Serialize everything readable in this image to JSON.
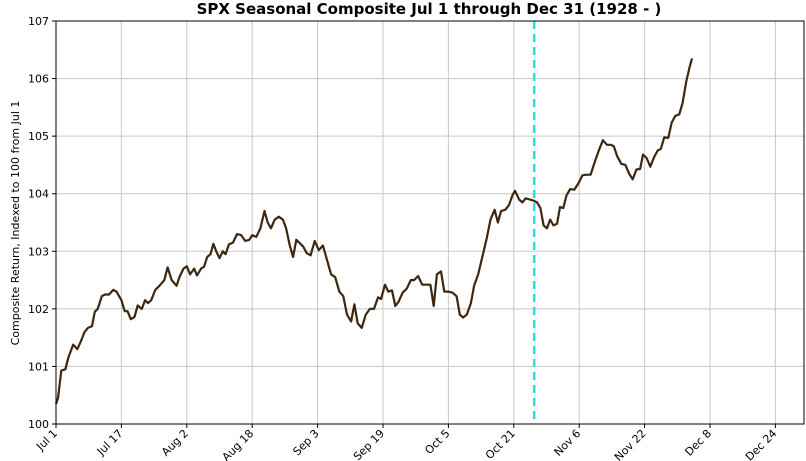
{
  "chart_data": {
    "type": "line",
    "title": "SPX Seasonal Composite Jul 1 through Dec 31 (1928 - )",
    "xlabel": "",
    "ylabel": "Composite Return, Indexed to 100 from Jul 1",
    "ylim": [
      100,
      107
    ],
    "yticks": [
      100,
      101,
      102,
      103,
      104,
      105,
      106,
      107
    ],
    "grid": true,
    "xtick_labels": [
      "Jul 1",
      "Jul 17",
      "Aug 2",
      "Aug 18",
      "Sep 3",
      "Sep 19",
      "Oct 5",
      "Oct 21",
      "Nov 6",
      "Nov 22",
      "Dec 8",
      "Dec 24"
    ],
    "xtick_days": [
      0,
      16,
      32,
      48,
      64,
      80,
      96,
      112,
      128,
      144,
      160,
      176
    ],
    "xlim_days": [
      0,
      183
    ],
    "vline_day": 117,
    "vline_color": "#22e0f0",
    "line_color": "#3d2710",
    "series": [
      {
        "points": [
          [
            0,
            100.35
          ],
          [
            0.5,
            100.45
          ],
          [
            1.3,
            100.93
          ],
          [
            2.3,
            100.95
          ],
          [
            3,
            101.15
          ],
          [
            4.2,
            101.38
          ],
          [
            5.2,
            101.3
          ],
          [
            6,
            101.42
          ],
          [
            7,
            101.6
          ],
          [
            7.8,
            101.67
          ],
          [
            8.8,
            101.7
          ],
          [
            9.5,
            101.95
          ],
          [
            10.2,
            102.0
          ],
          [
            11.2,
            102.22
          ],
          [
            12,
            102.25
          ],
          [
            13,
            102.25
          ],
          [
            14,
            102.33
          ],
          [
            14.8,
            102.3
          ],
          [
            16,
            102.15
          ],
          [
            16.8,
            101.96
          ],
          [
            17.5,
            101.96
          ],
          [
            18.3,
            101.82
          ],
          [
            19.2,
            101.86
          ],
          [
            20,
            102.06
          ],
          [
            21,
            102.0
          ],
          [
            21.8,
            102.15
          ],
          [
            22.5,
            102.1
          ],
          [
            23.3,
            102.15
          ],
          [
            24.3,
            102.33
          ],
          [
            25.3,
            102.4
          ],
          [
            26.5,
            102.5
          ],
          [
            27.3,
            102.72
          ],
          [
            28.3,
            102.5
          ],
          [
            29.5,
            102.4
          ],
          [
            30.2,
            102.55
          ],
          [
            31.2,
            102.7
          ],
          [
            32,
            102.74
          ],
          [
            32.8,
            102.6
          ],
          [
            33.8,
            102.7
          ],
          [
            34.5,
            102.58
          ],
          [
            35.5,
            102.7
          ],
          [
            36.2,
            102.73
          ],
          [
            37,
            102.9
          ],
          [
            37.8,
            102.95
          ],
          [
            38.5,
            103.13
          ],
          [
            39.2,
            103.0
          ],
          [
            40,
            102.88
          ],
          [
            40.8,
            103.0
          ],
          [
            41.5,
            102.95
          ],
          [
            42.3,
            103.12
          ],
          [
            43.3,
            103.15
          ],
          [
            44.3,
            103.3
          ],
          [
            45.3,
            103.28
          ],
          [
            46.3,
            103.18
          ],
          [
            47.3,
            103.2
          ],
          [
            48,
            103.28
          ],
          [
            49,
            103.25
          ],
          [
            50,
            103.4
          ],
          [
            51,
            103.7
          ],
          [
            51.8,
            103.5
          ],
          [
            52.6,
            103.4
          ],
          [
            53.5,
            103.55
          ],
          [
            54.5,
            103.6
          ],
          [
            55.5,
            103.55
          ],
          [
            56.3,
            103.4
          ],
          [
            57.2,
            103.1
          ],
          [
            58,
            102.9
          ],
          [
            58.8,
            103.2
          ],
          [
            59.5,
            103.15
          ],
          [
            60.5,
            103.08
          ],
          [
            61.3,
            102.97
          ],
          [
            62.3,
            102.93
          ],
          [
            63.3,
            103.18
          ],
          [
            64.3,
            103.02
          ],
          [
            65.3,
            103.1
          ],
          [
            66.3,
            102.85
          ],
          [
            67.3,
            102.6
          ],
          [
            68.3,
            102.55
          ],
          [
            69.3,
            102.3
          ],
          [
            70.3,
            102.22
          ],
          [
            71.2,
            101.9
          ],
          [
            72.2,
            101.78
          ],
          [
            73,
            102.08
          ],
          [
            73.8,
            101.75
          ],
          [
            74.8,
            101.67
          ],
          [
            75.8,
            101.9
          ],
          [
            76.8,
            102.0
          ],
          [
            77.8,
            102.0
          ],
          [
            78.8,
            102.2
          ],
          [
            79.5,
            102.17
          ],
          [
            80.5,
            102.42
          ],
          [
            81.3,
            102.3
          ],
          [
            82.2,
            102.32
          ],
          [
            83,
            102.05
          ],
          [
            83.8,
            102.12
          ],
          [
            84.8,
            102.28
          ],
          [
            85.8,
            102.35
          ],
          [
            86.8,
            102.5
          ],
          [
            87.6,
            102.5
          ],
          [
            88.6,
            102.57
          ],
          [
            89.6,
            102.42
          ],
          [
            90.6,
            102.42
          ],
          [
            91.6,
            102.42
          ],
          [
            92.4,
            102.05
          ],
          [
            93.2,
            102.6
          ],
          [
            94.2,
            102.65
          ],
          [
            95,
            102.3
          ],
          [
            96,
            102.3
          ],
          [
            97,
            102.28
          ],
          [
            98,
            102.22
          ],
          [
            98.8,
            101.9
          ],
          [
            99.6,
            101.85
          ],
          [
            100.5,
            101.9
          ],
          [
            101.5,
            102.1
          ],
          [
            102.3,
            102.4
          ],
          [
            103.3,
            102.6
          ],
          [
            104.3,
            102.9
          ],
          [
            105.3,
            103.2
          ],
          [
            106.3,
            103.55
          ],
          [
            107.3,
            103.72
          ],
          [
            108.1,
            103.5
          ],
          [
            108.9,
            103.7
          ],
          [
            109.9,
            103.72
          ],
          [
            110.8,
            103.8
          ],
          [
            111.7,
            103.98
          ],
          [
            112.3,
            104.05
          ],
          [
            113.3,
            103.9
          ],
          [
            114.1,
            103.85
          ],
          [
            114.9,
            103.92
          ],
          [
            115.9,
            103.9
          ],
          [
            116.8,
            103.88
          ],
          [
            117.7,
            103.85
          ],
          [
            118.5,
            103.75
          ],
          [
            119.3,
            103.45
          ],
          [
            120.1,
            103.4
          ],
          [
            120.9,
            103.55
          ],
          [
            121.7,
            103.45
          ],
          [
            122.6,
            103.48
          ],
          [
            123.3,
            103.77
          ],
          [
            124.1,
            103.75
          ],
          [
            124.9,
            103.97
          ],
          [
            125.8,
            104.08
          ],
          [
            126.8,
            104.07
          ],
          [
            127.8,
            104.18
          ],
          [
            128.8,
            104.32
          ],
          [
            129.8,
            104.33
          ],
          [
            130.8,
            104.33
          ],
          [
            131.8,
            104.55
          ],
          [
            132.8,
            104.75
          ],
          [
            133.8,
            104.93
          ],
          [
            134.8,
            104.85
          ],
          [
            135.8,
            104.85
          ],
          [
            136.5,
            104.82
          ],
          [
            137.3,
            104.65
          ],
          [
            138.3,
            104.52
          ],
          [
            139.3,
            104.5
          ],
          [
            140.2,
            104.35
          ],
          [
            141.1,
            104.25
          ],
          [
            142,
            104.42
          ],
          [
            142.9,
            104.43
          ],
          [
            143.6,
            104.68
          ],
          [
            144.5,
            104.62
          ],
          [
            145.4,
            104.47
          ],
          [
            146.3,
            104.63
          ],
          [
            147.2,
            104.75
          ],
          [
            148,
            104.78
          ],
          [
            148.8,
            104.98
          ],
          [
            149.8,
            104.97
          ],
          [
            150.6,
            105.23
          ],
          [
            151.5,
            105.35
          ],
          [
            152.5,
            105.38
          ],
          [
            153.3,
            105.58
          ],
          [
            154.2,
            105.95
          ],
          [
            155,
            106.2
          ],
          [
            155.6,
            106.35
          ]
        ]
      }
    ]
  }
}
